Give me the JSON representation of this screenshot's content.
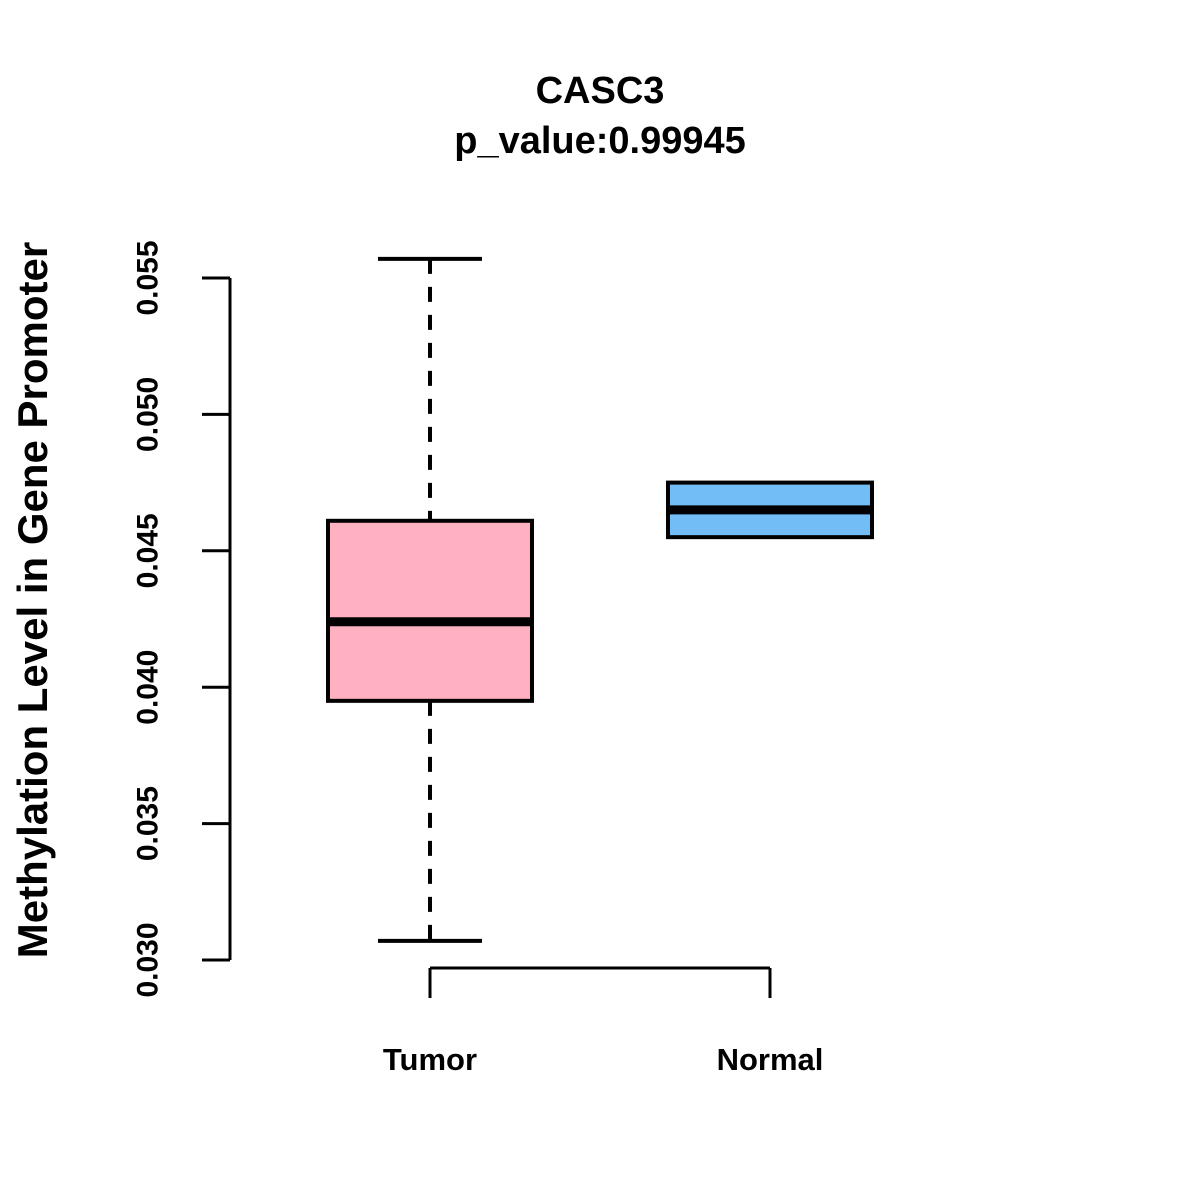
{
  "chart_data": {
    "type": "boxplot",
    "title": "CASC3",
    "subtitle": "p_value:0.99945",
    "gene": "CASC3",
    "p_value": "0.99945",
    "ylabel": "Methylation Level in Gene Promoter",
    "xlabel": "",
    "ylim": [
      0.03,
      0.0557
    ],
    "y_ticks": [
      0.03,
      0.035,
      0.04,
      0.045,
      0.05,
      0.055
    ],
    "y_tick_labels": [
      "0.030",
      "0.035",
      "0.040",
      "0.045",
      "0.050",
      "0.055"
    ],
    "categories": [
      "Tumor",
      "Normal"
    ],
    "series": [
      {
        "name": "Tumor",
        "fill": "#FFB1C1",
        "stats": {
          "whisker_low": 0.0307,
          "q1": 0.0395,
          "median": 0.0424,
          "q3": 0.0461,
          "whisker_high": 0.0557
        },
        "whiskers_visible": true
      },
      {
        "name": "Normal",
        "fill": "#72BDF5",
        "stats": {
          "whisker_low": 0.0455,
          "q1": 0.0455,
          "median": 0.0465,
          "q3": 0.0475,
          "whisker_high": 0.0475
        },
        "whiskers_visible": false
      }
    ],
    "style": {
      "box_border_color": "#000000",
      "median_color": "#000000",
      "axis_color": "#000000",
      "text_color": "#000000",
      "background": "#FFFFFF",
      "whisker_linestyle": "dashed"
    },
    "legend": "none",
    "grid": false
  }
}
